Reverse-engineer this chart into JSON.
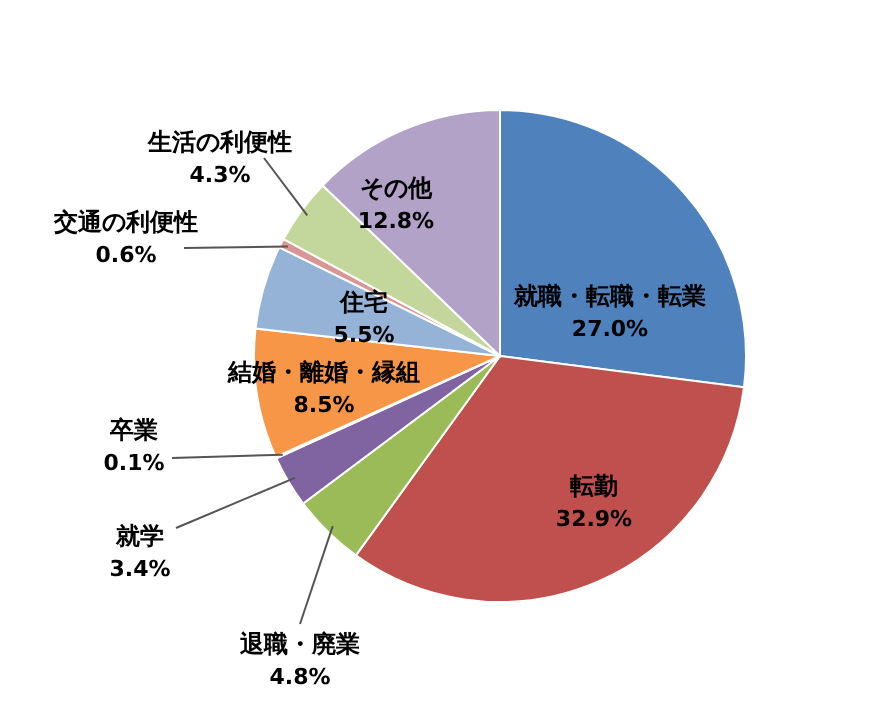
{
  "chart_data": {
    "type": "pie",
    "categories": [
      "就職・転職・転業",
      "転勤",
      "退職・廃業",
      "就学",
      "卒業",
      "結婚・離婚・縁組",
      "住宅",
      "交通の利便性",
      "生活の利便性",
      "その他"
    ],
    "values": [
      27.0,
      32.9,
      4.8,
      3.4,
      0.1,
      8.5,
      5.5,
      0.6,
      4.3,
      12.8
    ],
    "colors": [
      "#4f81bd",
      "#c0504d",
      "#9bbb59",
      "#8064a2",
      "#4bacc6",
      "#f79646",
      "#95b3d7",
      "#d99694",
      "#c3d69b",
      "#b3a2c7"
    ],
    "value_labels": [
      "27.0%",
      "32.9%",
      "4.8%",
      "3.4%",
      "0.1%",
      "8.5%",
      "5.5%",
      "0.6%",
      "4.3%",
      "12.8%"
    ]
  }
}
